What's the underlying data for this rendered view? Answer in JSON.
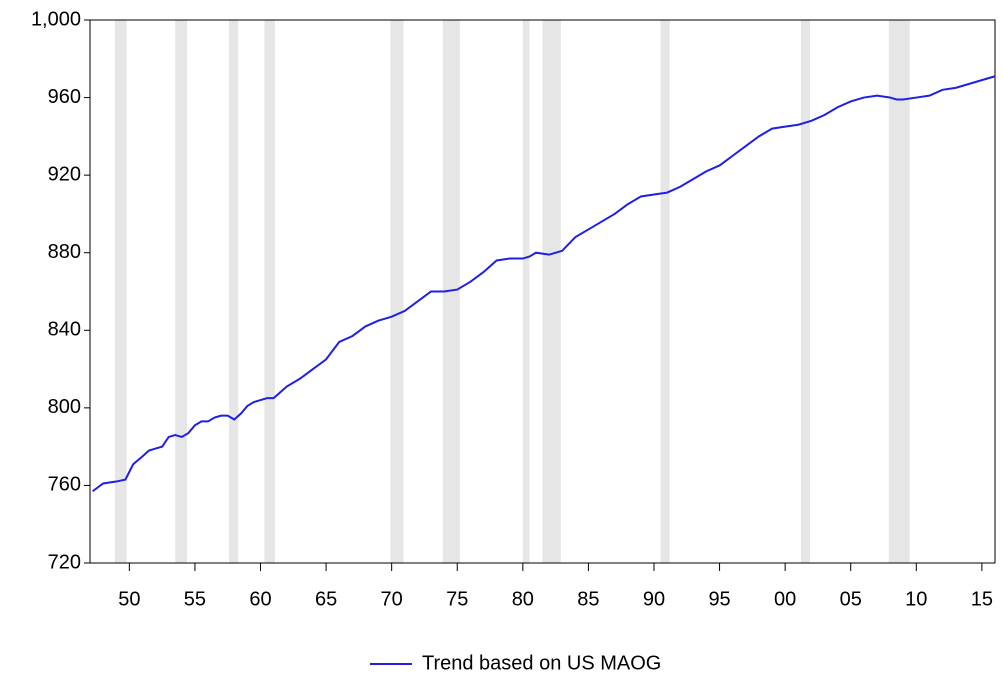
{
  "chart_data": {
    "type": "line",
    "x": [
      1947.2,
      1948,
      1949,
      1949.7,
      1950.3,
      1951,
      1951.5,
      1952,
      1952.5,
      1953,
      1953.5,
      1954,
      1954.5,
      1955,
      1955.5,
      1956,
      1956.5,
      1957,
      1957.5,
      1958,
      1958.5,
      1959,
      1959.5,
      1960,
      1960.5,
      1961,
      1961.5,
      1962,
      1963,
      1964,
      1965,
      1966,
      1967,
      1968,
      1969,
      1970,
      1971,
      1972,
      1973,
      1974,
      1975,
      1976,
      1977,
      1978,
      1979,
      1980,
      1980.5,
      1981,
      1982,
      1983,
      1984,
      1985,
      1986,
      1987,
      1988,
      1989,
      1990,
      1991,
      1992,
      1993,
      1994,
      1995,
      1996,
      1997,
      1998,
      1999,
      2000,
      2001,
      2002,
      2003,
      2004,
      2005,
      2006,
      2007,
      2008,
      2008.5,
      2009,
      2010,
      2011,
      2012,
      2013,
      2014,
      2015,
      2016
    ],
    "series": [
      {
        "name": "Trend based on US MAOG",
        "color": "#1f1fe6",
        "values": [
          757,
          761,
          762,
          763,
          771,
          775,
          778,
          779,
          780,
          785,
          786,
          785,
          787,
          791,
          793,
          793,
          795,
          796,
          796,
          794,
          797,
          801,
          803,
          804,
          805,
          805,
          808,
          811,
          815,
          820,
          825,
          834,
          837,
          842,
          845,
          847,
          850,
          855,
          860,
          860,
          861,
          865,
          870,
          876,
          877,
          877,
          878,
          880,
          879,
          881,
          888,
          892,
          896,
          900,
          905,
          909,
          910,
          911,
          914,
          918,
          922,
          925,
          930,
          935,
          940,
          944,
          945,
          946,
          948,
          951,
          955,
          958,
          960,
          961,
          960,
          959,
          959,
          960,
          961,
          964,
          965,
          967,
          969,
          971
        ]
      }
    ],
    "shaded_periods": [
      [
        1948.9,
        1949.8
      ],
      [
        1953.5,
        1954.4
      ],
      [
        1957.6,
        1958.3
      ],
      [
        1960.3,
        1961.1
      ],
      [
        1969.9,
        1970.9
      ],
      [
        1973.9,
        1975.2
      ],
      [
        1980.0,
        1980.5
      ],
      [
        1981.5,
        1982.9
      ],
      [
        1990.5,
        1991.2
      ],
      [
        2001.2,
        2001.9
      ],
      [
        2007.9,
        2009.5
      ]
    ],
    "shade_color": "#e6e6e6",
    "xlim": [
      1947,
      2016
    ],
    "xticks": [
      {
        "value": 1950,
        "label": "50"
      },
      {
        "value": 1955,
        "label": "55"
      },
      {
        "value": 1960,
        "label": "60"
      },
      {
        "value": 1965,
        "label": "65"
      },
      {
        "value": 1970,
        "label": "70"
      },
      {
        "value": 1975,
        "label": "75"
      },
      {
        "value": 1980,
        "label": "80"
      },
      {
        "value": 1985,
        "label": "85"
      },
      {
        "value": 1990,
        "label": "90"
      },
      {
        "value": 1995,
        "label": "95"
      },
      {
        "value": 2000,
        "label": "00"
      },
      {
        "value": 2005,
        "label": "05"
      },
      {
        "value": 2010,
        "label": "10"
      },
      {
        "value": 2015,
        "label": "15"
      }
    ],
    "ylim": [
      720,
      1000
    ],
    "yticks": [
      720,
      760,
      800,
      840,
      880,
      920,
      960,
      {
        "value": 1000,
        "label": "1,000"
      }
    ],
    "legend": "bottom"
  }
}
